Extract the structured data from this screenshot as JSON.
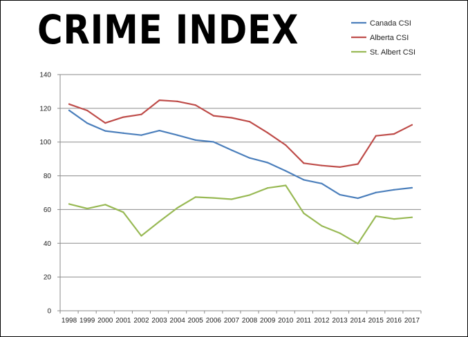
{
  "chart_data": {
    "type": "line",
    "title": "CRIME INDEX",
    "xlabel": "",
    "ylabel": "",
    "categories": [
      "1998",
      "1999",
      "2000",
      "2001",
      "2002",
      "2003",
      "2004",
      "2005",
      "2006",
      "2007",
      "2008",
      "2009",
      "2010",
      "2011",
      "2012",
      "2013",
      "2014",
      "2015",
      "2016",
      "2017"
    ],
    "ylim": [
      0,
      140
    ],
    "yticks": [
      0,
      20,
      40,
      60,
      80,
      100,
      120,
      140
    ],
    "grid": "horizontal",
    "legend_position": "top-right",
    "series": [
      {
        "name": "Canada CSI",
        "color": "#4a7ebb",
        "values": [
          118.8,
          111.2,
          106.6,
          105.3,
          104.1,
          106.8,
          104.1,
          101.2,
          100.1,
          95.2,
          90.6,
          87.8,
          82.9,
          77.6,
          75.4,
          68.8,
          66.7,
          70.1,
          71.7,
          72.9
        ]
      },
      {
        "name": "Alberta CSI",
        "color": "#be4b48",
        "values": [
          122.5,
          118.7,
          111.3,
          114.8,
          116.4,
          124.8,
          124.1,
          121.9,
          115.6,
          114.4,
          112.1,
          105.5,
          98.2,
          87.5,
          86.1,
          85.2,
          87.0,
          103.7,
          104.8,
          110.2
        ]
      },
      {
        "name": "St. Albert CSI",
        "color": "#98b954",
        "values": [
          63.3,
          60.6,
          62.9,
          58.4,
          44.4,
          52.9,
          61.0,
          67.4,
          66.9,
          66.1,
          68.6,
          72.8,
          74.3,
          57.8,
          50.3,
          46.0,
          39.8,
          56.1,
          54.4,
          55.4
        ]
      }
    ]
  }
}
